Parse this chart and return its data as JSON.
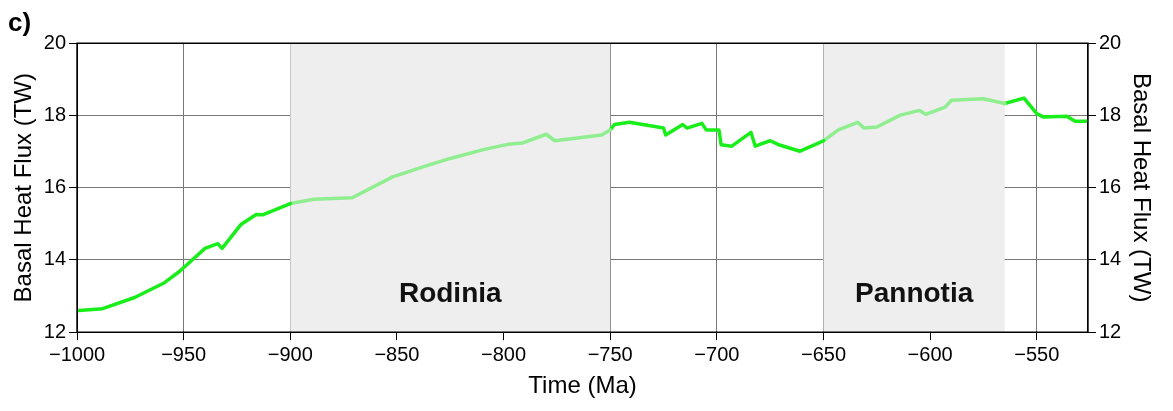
{
  "chart_data": {
    "type": "line",
    "title": "c)",
    "xlabel": "Time (Ma)",
    "ylabel": "Basal Heat Flux (TW)",
    "y2label": "Basal Heat Flux (TW)",
    "xlim": [
      -1000,
      -526
    ],
    "xticks": [
      -1000,
      -950,
      -900,
      -850,
      -800,
      -750,
      -700,
      -650,
      -600,
      -550
    ],
    "ylim": [
      12,
      20
    ],
    "yticks": [
      12,
      14,
      16,
      18,
      20
    ],
    "y2lim": [
      12,
      20
    ],
    "y2ticks": [
      12,
      14,
      16,
      18,
      20
    ],
    "grid": true,
    "legend": false,
    "marker": "none",
    "line_style": "solid",
    "bands": [
      {
        "axis": "x",
        "from": -900,
        "to": -750,
        "label": "Rodinia",
        "color": "#eeeeee"
      },
      {
        "axis": "x",
        "from": -650,
        "to": -565,
        "label": "Pannotia",
        "color": "#eeeeee"
      }
    ],
    "series": [
      {
        "type": "line",
        "color": "#1aee1a",
        "x": [
          -999,
          -988,
          -973,
          -959,
          -952,
          -940,
          -934,
          -932,
          -923,
          -916,
          -913,
          -900
        ],
        "values": [
          12.6,
          12.65,
          12.96,
          13.37,
          13.68,
          14.32,
          14.45,
          14.32,
          14.99,
          15.26,
          15.25,
          15.56
        ]
      },
      {
        "type": "line",
        "color": "#90ee90",
        "x": [
          -900,
          -889,
          -871,
          -852,
          -836,
          -825,
          -809,
          -798,
          -791,
          -780,
          -776,
          -754,
          -750
        ],
        "values": [
          15.56,
          15.68,
          15.72,
          16.3,
          16.61,
          16.81,
          17.06,
          17.2,
          17.24,
          17.48,
          17.3,
          17.46,
          17.6
        ]
      },
      {
        "type": "line",
        "color": "#1aee1a",
        "x": [
          -750,
          -748,
          -741,
          -725,
          -724,
          -716,
          -714,
          -707,
          -705,
          -699,
          -698,
          -693,
          -684,
          -682,
          -675,
          -671,
          -661,
          -654,
          -650
        ],
        "values": [
          17.6,
          17.75,
          17.81,
          17.65,
          17.46,
          17.75,
          17.65,
          17.78,
          17.6,
          17.6,
          17.19,
          17.15,
          17.53,
          17.15,
          17.3,
          17.19,
          17.01,
          17.19,
          17.3
        ]
      },
      {
        "type": "line",
        "color": "#90ee90",
        "x": [
          -650,
          -643,
          -634,
          -631,
          -625,
          -614,
          -605,
          -602,
          -593,
          -590,
          -575,
          -565
        ],
        "values": [
          17.3,
          17.6,
          17.81,
          17.65,
          17.68,
          18.01,
          18.14,
          18.03,
          18.23,
          18.42,
          18.46,
          18.33
        ]
      },
      {
        "type": "line",
        "color": "#1aee1a",
        "x": [
          -565,
          -556,
          -550,
          -547,
          -536,
          -532,
          -526
        ],
        "values": [
          18.33,
          18.48,
          18.05,
          17.96,
          17.98,
          17.84,
          17.84
        ]
      }
    ]
  }
}
